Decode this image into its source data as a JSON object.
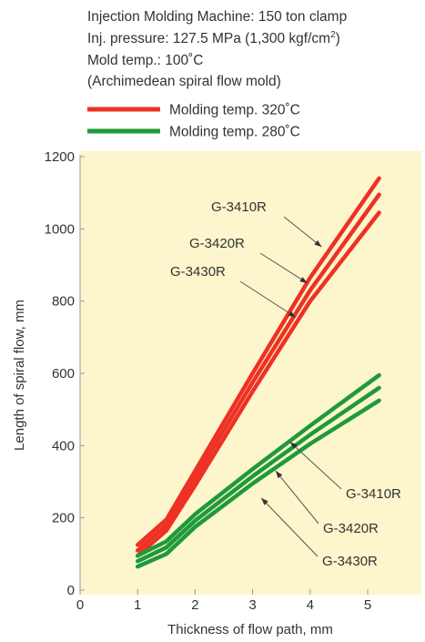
{
  "conditions": {
    "machine": "Injection Molding Machine: 150 ton clamp",
    "pressure_main": "Inj. pressure: 127.5 MPa (1,300 kgf/cm",
    "pressure_sup": "2",
    "pressure_end": ")",
    "mold_temp": "Mold temp.: 100˚C",
    "mold_type": "(Archimedean spiral flow mold)"
  },
  "colors": {
    "plot_background": "#fdf6cc",
    "temp_320": "#ee3124",
    "temp_280": "#1f9a3a",
    "annotation": "#555555"
  },
  "chart_data": {
    "type": "line",
    "xlabel": "Thickness of flow path, mm",
    "ylabel": "Length of spiral flow, mm",
    "xlim": [
      0,
      5.5
    ],
    "ylim": [
      0,
      1200
    ],
    "xticks": [
      0,
      1,
      2,
      3,
      4,
      5
    ],
    "yticks": [
      0,
      200,
      400,
      600,
      800,
      1000,
      1200
    ],
    "grid": false,
    "legend": [
      {
        "label": "Molding temp. 320˚C",
        "color": "#ee3124"
      },
      {
        "label": "Molding temp. 280˚C",
        "color": "#1f9a3a"
      }
    ],
    "series": [
      {
        "name": "G-3410R",
        "group": "Molding temp. 320˚C",
        "x": [
          1,
          1.5,
          2,
          3,
          4,
          5.2
        ],
        "y": [
          125,
          195,
          330,
          600,
          865,
          1140
        ]
      },
      {
        "name": "G-3420R",
        "group": "Molding temp. 320˚C",
        "x": [
          1,
          1.5,
          2,
          3,
          4,
          5.2
        ],
        "y": [
          110,
          180,
          310,
          575,
          830,
          1095
        ]
      },
      {
        "name": "G-3430R",
        "group": "Molding temp. 320˚C",
        "x": [
          1,
          1.5,
          2,
          3,
          4,
          5.2
        ],
        "y": [
          95,
          165,
          290,
          550,
          800,
          1045
        ]
      },
      {
        "name": "G-3410R",
        "group": "Molding temp. 280˚C",
        "x": [
          1,
          1.5,
          2,
          3,
          4,
          5.2
        ],
        "y": [
          95,
          135,
          210,
          335,
          455,
          595
        ]
      },
      {
        "name": "G-3420R",
        "group": "Molding temp. 280˚C",
        "x": [
          1,
          1.5,
          2,
          3,
          4,
          5.2
        ],
        "y": [
          80,
          118,
          192,
          315,
          430,
          560
        ]
      },
      {
        "name": "G-3430R",
        "group": "Molding temp. 280˚C",
        "x": [
          1,
          1.5,
          2,
          3,
          4,
          5.2
        ],
        "y": [
          65,
          100,
          175,
          295,
          405,
          525
        ]
      }
    ],
    "annotations": [
      {
        "text": "G-3410R",
        "point": [
          4.2,
          950
        ]
      },
      {
        "text": "G-3420R",
        "point": [
          3.95,
          850
        ]
      },
      {
        "text": "G-3430R",
        "point": [
          3.75,
          755
        ]
      },
      {
        "text": "G-3410R",
        "point": [
          3.65,
          410
        ]
      },
      {
        "text": "G-3420R",
        "point": [
          3.4,
          330
        ]
      },
      {
        "text": "G-3430R",
        "point": [
          3.15,
          255
        ]
      }
    ]
  }
}
